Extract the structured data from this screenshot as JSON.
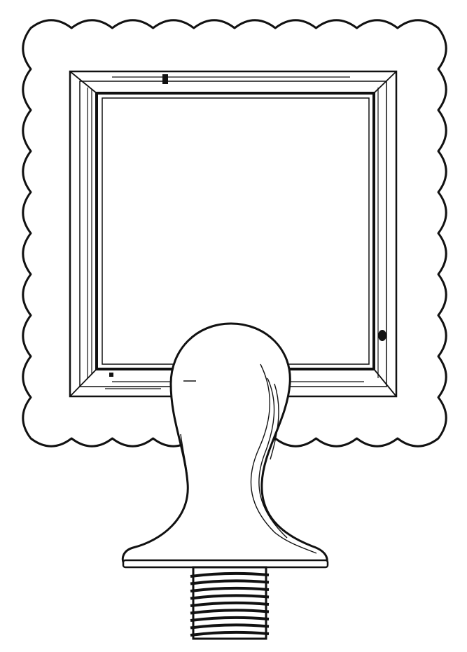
{
  "figure": {
    "subject": "scalloped-frame-on-threaded-stem",
    "ink_color": "#111111",
    "paper_color": "#ffffff"
  }
}
